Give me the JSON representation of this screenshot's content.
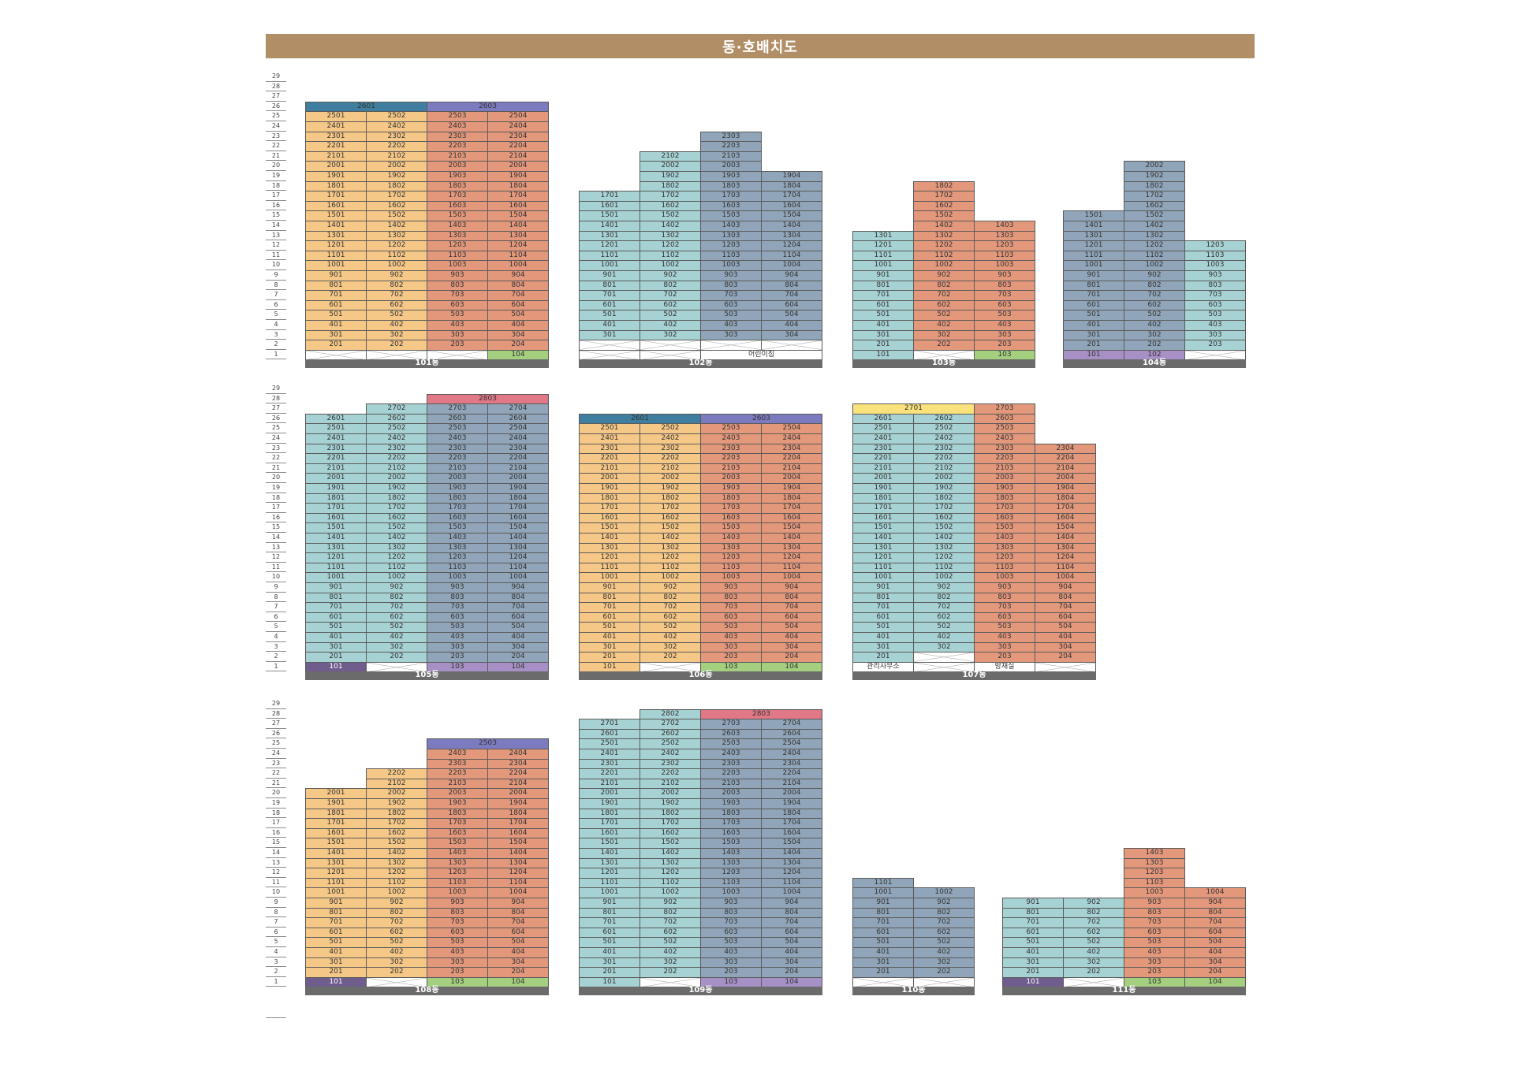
{
  "title": "동·호배치도",
  "colors": {
    "orange": "#f6c887",
    "salmon": "#e4987b",
    "teal": "#a7d2d3",
    "slate": "#90a5b9",
    "blue_top": "#3f7e9e",
    "purple_top": "#7c7bc0",
    "pink_top": "#e07887",
    "yellow_top": "#f9e27b",
    "green": "#a3cf7f",
    "lavender": "#a690c5",
    "dark_purple": "#6e5d8d",
    "base": "#6b6b6b",
    "title_bar": "#b18e66"
  },
  "floor_labels": [
    "29",
    "28",
    "27",
    "26",
    "25",
    "24",
    "23",
    "22",
    "21",
    "20",
    "19",
    "18",
    "17",
    "16",
    "15",
    "14",
    "13",
    "12",
    "11",
    "10",
    "9",
    "8",
    "7",
    "6",
    "5",
    "4",
    "3",
    "2",
    "1"
  ],
  "buildings": [
    {
      "name": "101동",
      "columns": [
        {
          "color": "orange",
          "top": 25,
          "topcell": {
            "label": "2601",
            "color": "blue_top"
          },
          "ground": {
            "label": ""
          }
        },
        {
          "color": "orange",
          "top": 25,
          "topcell": {
            "label": "",
            "color": "blue_top"
          },
          "ground": {
            "label": ""
          }
        },
        {
          "color": "salmon",
          "top": 25,
          "topcell": {
            "label": "2603",
            "color": "purple_top"
          },
          "ground": {
            "label": ""
          }
        },
        {
          "color": "salmon",
          "top": 25,
          "topcell": {
            "label": "",
            "color": "purple_top"
          },
          "ground": {
            "label": "104",
            "color": "green"
          }
        }
      ]
    },
    {
      "name": "102동",
      "columns": [
        {
          "color": "teal",
          "top": 17,
          "ground": {
            "label": ""
          },
          "empty_floors": [
            2
          ]
        },
        {
          "color": "teal",
          "top": 21,
          "ground": {
            "label": ""
          },
          "empty_floors": [
            2
          ]
        },
        {
          "color": "slate",
          "top": 23,
          "ground": {
            "label": "어린이집",
            "span": 2,
            "color": "white"
          },
          "empty_floors": [
            2
          ]
        },
        {
          "color": "slate",
          "top": 19,
          "ground": {
            "skip": true
          },
          "empty_floors": [
            2
          ]
        }
      ]
    },
    {
      "name": "103동",
      "columns": [
        {
          "color": "teal",
          "top": 13,
          "ground": {
            "label": "101",
            "color": "teal"
          }
        },
        {
          "color": "salmon",
          "top": 18,
          "ground": {
            "label": ""
          }
        },
        {
          "color": "salmon",
          "top": 14,
          "ground": {
            "label": "103",
            "color": "green"
          }
        }
      ]
    },
    {
      "name": "104동",
      "columns": [
        {
          "color": "slate",
          "top": 15,
          "ground": {
            "label": "101",
            "color": "lavender"
          }
        },
        {
          "color": "slate",
          "top": 20,
          "ground": {
            "label": "102",
            "color": "lavender"
          }
        },
        {
          "color": "teal",
          "top": 12,
          "ground": {
            "label": ""
          }
        }
      ]
    },
    {
      "name": "105동",
      "columns": [
        {
          "color": "teal",
          "top": 26,
          "ground": {
            "label": "101",
            "color": "dark_purple"
          }
        },
        {
          "color": "teal",
          "top": 27,
          "ground": {
            "label": ""
          }
        },
        {
          "color": "slate",
          "top": 27,
          "topcell": {
            "label": "2803",
            "color": "pink_top"
          },
          "ground": {
            "label": "103",
            "color": "lavender"
          }
        },
        {
          "color": "slate",
          "top": 27,
          "topcell": {
            "label": "",
            "color": "pink_top"
          },
          "ground": {
            "label": "104",
            "color": "lavender"
          }
        }
      ]
    },
    {
      "name": "106동",
      "columns": [
        {
          "color": "orange",
          "top": 25,
          "topcell": {
            "label": "2601",
            "color": "blue_top"
          },
          "ground": {
            "label": "101",
            "color": "orange"
          }
        },
        {
          "color": "orange",
          "top": 25,
          "topcell": {
            "label": "",
            "color": "blue_top"
          },
          "ground": {
            "label": ""
          }
        },
        {
          "color": "salmon",
          "top": 25,
          "topcell": {
            "label": "2603",
            "color": "purple_top"
          },
          "ground": {
            "label": "103",
            "color": "green"
          }
        },
        {
          "color": "salmon",
          "top": 25,
          "topcell": {
            "label": "",
            "color": "purple_top"
          },
          "ground": {
            "label": "104",
            "color": "green"
          }
        }
      ]
    },
    {
      "name": "107동",
      "columns": [
        {
          "color": "teal",
          "top": 26,
          "topcell": {
            "label": "2701",
            "color": "yellow_top"
          },
          "ground": {
            "label": "관리사무소",
            "color": "white"
          }
        },
        {
          "color": "teal",
          "top": 26,
          "topcell": {
            "label": "",
            "color": "yellow_top"
          },
          "ground": {
            "label": ""
          },
          "empty_floors": [
            2
          ]
        },
        {
          "color": "salmon",
          "top": 27,
          "ground": {
            "label": "방재실",
            "color": "white"
          }
        },
        {
          "color": "salmon",
          "top": 23,
          "ground": {
            "label": ""
          }
        }
      ]
    },
    {
      "name": "108동",
      "columns": [
        {
          "color": "orange",
          "top": 20,
          "ground": {
            "label": "101",
            "color": "dark_purple"
          }
        },
        {
          "color": "orange",
          "top": 22,
          "ground": {
            "label": ""
          }
        },
        {
          "color": "salmon",
          "top": 24,
          "topcell": {
            "label": "2503",
            "color": "purple_top"
          },
          "ground": {
            "label": "103",
            "color": "green"
          }
        },
        {
          "color": "salmon",
          "top": 24,
          "topcell": {
            "label": "",
            "color": "purple_top"
          },
          "ground": {
            "label": "104",
            "color": "green"
          }
        }
      ]
    },
    {
      "name": "109동",
      "columns": [
        {
          "color": "teal",
          "top": 27,
          "ground": {
            "label": "101",
            "color": "teal"
          }
        },
        {
          "color": "teal",
          "top": 28,
          "ground": {
            "label": ""
          }
        },
        {
          "color": "slate",
          "top": 27,
          "topcell": {
            "label": "2803",
            "color": "pink_top"
          },
          "ground": {
            "label": "103",
            "color": "lavender"
          }
        },
        {
          "color": "slate",
          "top": 27,
          "topcell": {
            "label": "",
            "color": "pink_top"
          },
          "ground": {
            "label": "104",
            "color": "lavender"
          }
        }
      ]
    },
    {
      "name": "110동",
      "columns": [
        {
          "color": "slate",
          "top": 11,
          "ground": {
            "label": ""
          }
        },
        {
          "color": "slate",
          "top": 10,
          "ground": {
            "label": ""
          }
        }
      ]
    },
    {
      "name": "111동",
      "columns": [
        {
          "color": "teal",
          "top": 9,
          "ground": {
            "label": "101",
            "color": "dark_purple"
          }
        },
        {
          "color": "teal",
          "top": 9,
          "ground": {
            "label": ""
          }
        },
        {
          "color": "salmon",
          "top": 14,
          "ground": {
            "label": "103",
            "color": "green"
          }
        },
        {
          "color": "salmon",
          "top": 10,
          "ground": {
            "label": "104",
            "color": "green"
          }
        }
      ]
    }
  ]
}
